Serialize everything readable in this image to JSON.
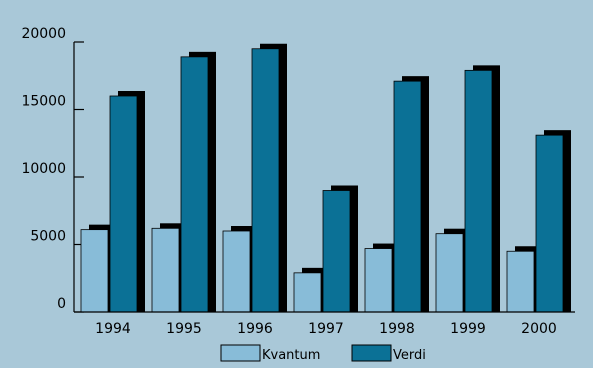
{
  "chart_data": {
    "type": "bar",
    "categories": [
      "1994",
      "1995",
      "1996",
      "1997",
      "1998",
      "1999",
      "2000"
    ],
    "series": [
      {
        "name": "Kvantum",
        "values": [
          6100,
          6200,
          6000,
          2900,
          4700,
          5800,
          4500
        ],
        "color": "#88bcd8"
      },
      {
        "name": "Verdi",
        "values": [
          16000,
          18900,
          19500,
          9000,
          17100,
          17900,
          13100
        ],
        "color": "#0b7196"
      }
    ],
    "ylim": [
      0,
      20000
    ],
    "yticks": [
      0,
      5000,
      10000,
      15000,
      20000
    ],
    "grid": false,
    "legend_position": "bottom-center",
    "background_color": "#a9c8d8",
    "shadow_color": "#000000"
  }
}
